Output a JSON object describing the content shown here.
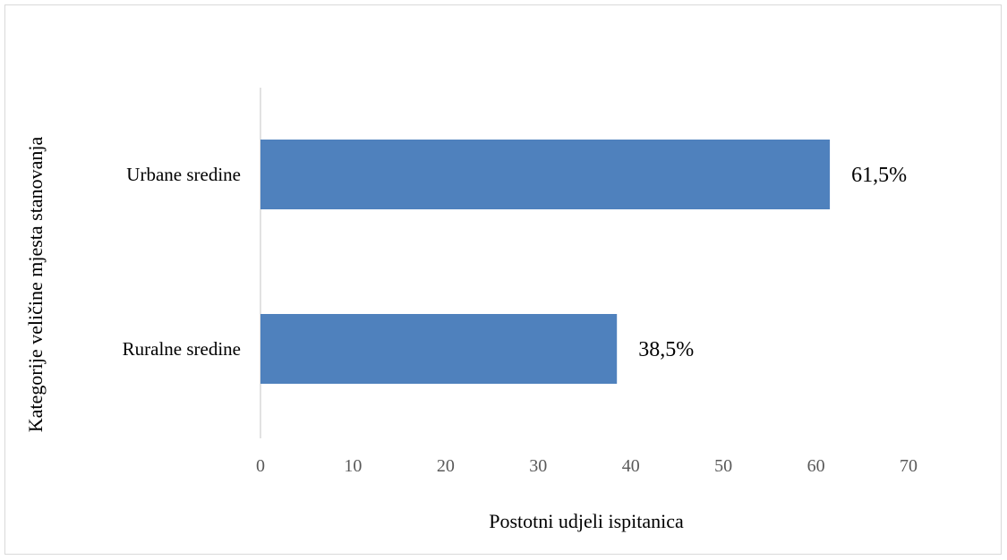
{
  "chart_data": {
    "type": "bar",
    "orientation": "horizontal",
    "title": "",
    "categories": [
      "Urbane sredine",
      "Ruralne sredine"
    ],
    "values": [
      61.5,
      38.5
    ],
    "data_labels": [
      "61,5%",
      "38,5%"
    ],
    "xlabel": "Postotni udjeli ispitanica",
    "ylabel": "Kategorije veličine mjesta stanovanja",
    "xlim": [
      0,
      70
    ],
    "xticks": [
      0,
      10,
      20,
      30,
      40,
      50,
      60,
      70
    ],
    "grid": false,
    "legend": "none",
    "bar_color": "#4f81bd"
  }
}
